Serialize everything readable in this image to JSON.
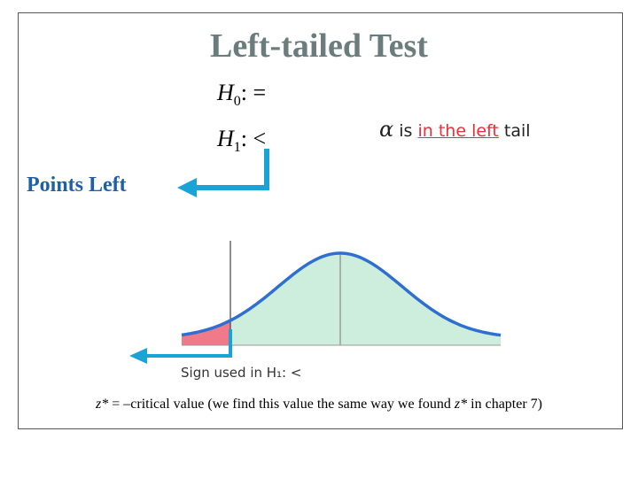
{
  "title": "Left-tailed Test",
  "h0": {
    "var": "H",
    "sub": "0",
    "rest": ": ="
  },
  "h1": {
    "var": "H",
    "sub": "1",
    "rest": ": <"
  },
  "alpha_text": {
    "symbol": "α",
    "is": "is",
    "highlight": "in the left",
    "tail": "tail"
  },
  "points_left": "Points Left",
  "sign_label": "Sign used in H₁: <",
  "footer": {
    "z1": "z*",
    "middle": " = –critical value (we find this value the same way we found ",
    "z2": "z*",
    "end": " in chapter 7)"
  },
  "colors": {
    "title": "#6b7c7c",
    "arrow": "#1aa3d6",
    "curve": "#2e6fd1",
    "fill": "#cdeedd",
    "tail": "#f07a8a",
    "highlight": "#e8303a",
    "points_left": "#1f5fa8"
  }
}
